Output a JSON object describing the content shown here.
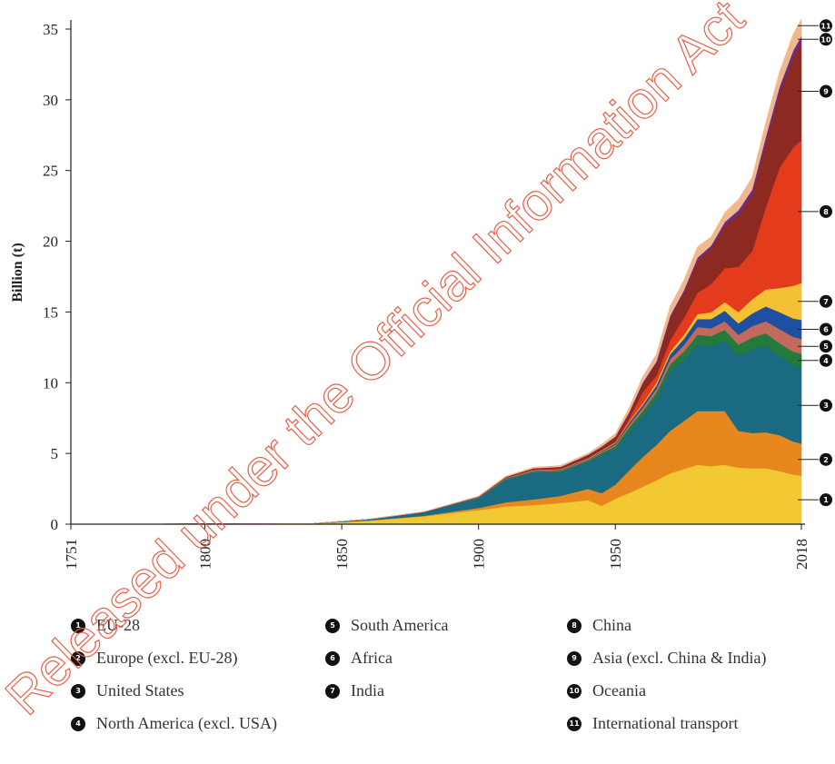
{
  "chart_data": {
    "type": "area",
    "stacked": true,
    "ylabel": "Billion (t)",
    "xlabel": "",
    "ylim": [
      0,
      36
    ],
    "xlim": [
      1751,
      2018
    ],
    "x_ticks": [
      "1751",
      "1800",
      "1850",
      "1900",
      "1950",
      "2018"
    ],
    "y_ticks": [
      "0",
      "5",
      "10",
      "15",
      "20",
      "25",
      "30",
      "35"
    ],
    "x": [
      1751,
      1800,
      1840,
      1860,
      1880,
      1900,
      1910,
      1920,
      1930,
      1940,
      1945,
      1950,
      1955,
      1960,
      1965,
      1970,
      1975,
      1980,
      1985,
      1990,
      1995,
      2000,
      2005,
      2010,
      2015,
      2018
    ],
    "series": [
      {
        "name": "EU-28",
        "badge": "1",
        "color": "#f2c833",
        "values": [
          0,
          0.02,
          0.05,
          0.25,
          0.55,
          1.0,
          1.25,
          1.35,
          1.5,
          1.7,
          1.3,
          1.8,
          2.2,
          2.65,
          3.1,
          3.6,
          3.9,
          4.2,
          4.1,
          4.2,
          4.0,
          3.95,
          3.95,
          3.75,
          3.5,
          3.45
        ]
      },
      {
        "name": "Europe (excl. EU-28)",
        "badge": "2",
        "color": "#e8871e",
        "values": [
          0,
          0,
          0,
          0.02,
          0.05,
          0.15,
          0.3,
          0.4,
          0.5,
          0.8,
          0.9,
          1.0,
          1.6,
          2.1,
          2.5,
          3.0,
          3.4,
          3.8,
          3.9,
          3.8,
          2.6,
          2.5,
          2.55,
          2.55,
          2.35,
          2.25
        ]
      },
      {
        "name": "United States",
        "badge": "3",
        "color": "#1a6a82",
        "values": [
          0,
          0,
          0,
          0.08,
          0.25,
          0.7,
          1.6,
          1.9,
          1.7,
          1.9,
          2.7,
          2.5,
          2.75,
          2.9,
          3.3,
          4.2,
          4.3,
          4.7,
          4.6,
          5.0,
          5.3,
          5.9,
          6.1,
          5.6,
          5.4,
          5.4
        ]
      },
      {
        "name": "North America (excl. USA)",
        "badge": "4",
        "color": "#237a3c",
        "values": [
          0,
          0,
          0,
          0,
          0.01,
          0.03,
          0.05,
          0.07,
          0.08,
          0.1,
          0.15,
          0.2,
          0.3,
          0.35,
          0.4,
          0.5,
          0.6,
          0.7,
          0.7,
          0.75,
          0.8,
          0.85,
          0.9,
          0.9,
          0.95,
          0.95
        ]
      },
      {
        "name": "South America",
        "badge": "5",
        "color": "#c26a5b",
        "values": [
          0,
          0,
          0,
          0,
          0,
          0.01,
          0.03,
          0.04,
          0.05,
          0.06,
          0.08,
          0.12,
          0.18,
          0.22,
          0.27,
          0.35,
          0.45,
          0.55,
          0.55,
          0.6,
          0.7,
          0.8,
          0.85,
          1.0,
          1.05,
          1.05
        ]
      },
      {
        "name": "Africa",
        "badge": "6",
        "color": "#1e4fa0",
        "values": [
          0,
          0,
          0,
          0,
          0,
          0.01,
          0.02,
          0.03,
          0.04,
          0.05,
          0.06,
          0.1,
          0.15,
          0.2,
          0.25,
          0.35,
          0.45,
          0.55,
          0.65,
          0.75,
          0.8,
          0.9,
          1.05,
          1.2,
          1.3,
          1.35
        ]
      },
      {
        "name": "India",
        "badge": "7",
        "color": "#f4c034",
        "values": [
          0,
          0,
          0,
          0,
          0,
          0.01,
          0.02,
          0.03,
          0.03,
          0.04,
          0.04,
          0.05,
          0.07,
          0.12,
          0.18,
          0.2,
          0.27,
          0.35,
          0.48,
          0.6,
          0.8,
          1.0,
          1.2,
          1.7,
          2.3,
          2.6
        ]
      },
      {
        "name": "China",
        "badge": "8",
        "color": "#e33b1c",
        "values": [
          0,
          0,
          0,
          0,
          0,
          0,
          0.01,
          0.02,
          0.02,
          0.03,
          0.03,
          0.08,
          0.2,
          0.8,
          0.5,
          0.8,
          1.2,
          1.5,
          2.0,
          2.4,
          3.2,
          3.4,
          5.8,
          8.5,
          9.8,
          10.1
        ]
      },
      {
        "name": "Asia (excl. China & India)",
        "badge": "9",
        "color": "#8c2a22",
        "values": [
          0,
          0,
          0,
          0,
          0.01,
          0.03,
          0.06,
          0.09,
          0.12,
          0.2,
          0.2,
          0.3,
          0.4,
          0.6,
          0.9,
          1.6,
          1.8,
          2.3,
          2.5,
          3.0,
          3.7,
          4.0,
          4.6,
          5.3,
          6.4,
          6.9
        ]
      },
      {
        "name": "Oceania",
        "badge": "10",
        "color": "#6a2c8c",
        "values": [
          0,
          0,
          0,
          0,
          0,
          0.01,
          0.01,
          0.02,
          0.02,
          0.03,
          0.03,
          0.05,
          0.06,
          0.08,
          0.1,
          0.13,
          0.15,
          0.2,
          0.22,
          0.27,
          0.3,
          0.36,
          0.4,
          0.42,
          0.44,
          0.45
        ]
      },
      {
        "name": "International transport",
        "badge": "11",
        "color": "#f0b88c",
        "values": [
          0,
          0,
          0,
          0,
          0.01,
          0.03,
          0.05,
          0.07,
          0.09,
          0.1,
          0.15,
          0.2,
          0.3,
          0.4,
          0.5,
          0.65,
          0.7,
          0.75,
          0.6,
          0.65,
          0.75,
          0.85,
          1.0,
          1.05,
          1.15,
          1.2
        ]
      }
    ],
    "legend_placement": "bottom",
    "series_markers_right": true
  },
  "watermark": {
    "text": "Released under the Official Information Act",
    "color": "#e8604a"
  }
}
